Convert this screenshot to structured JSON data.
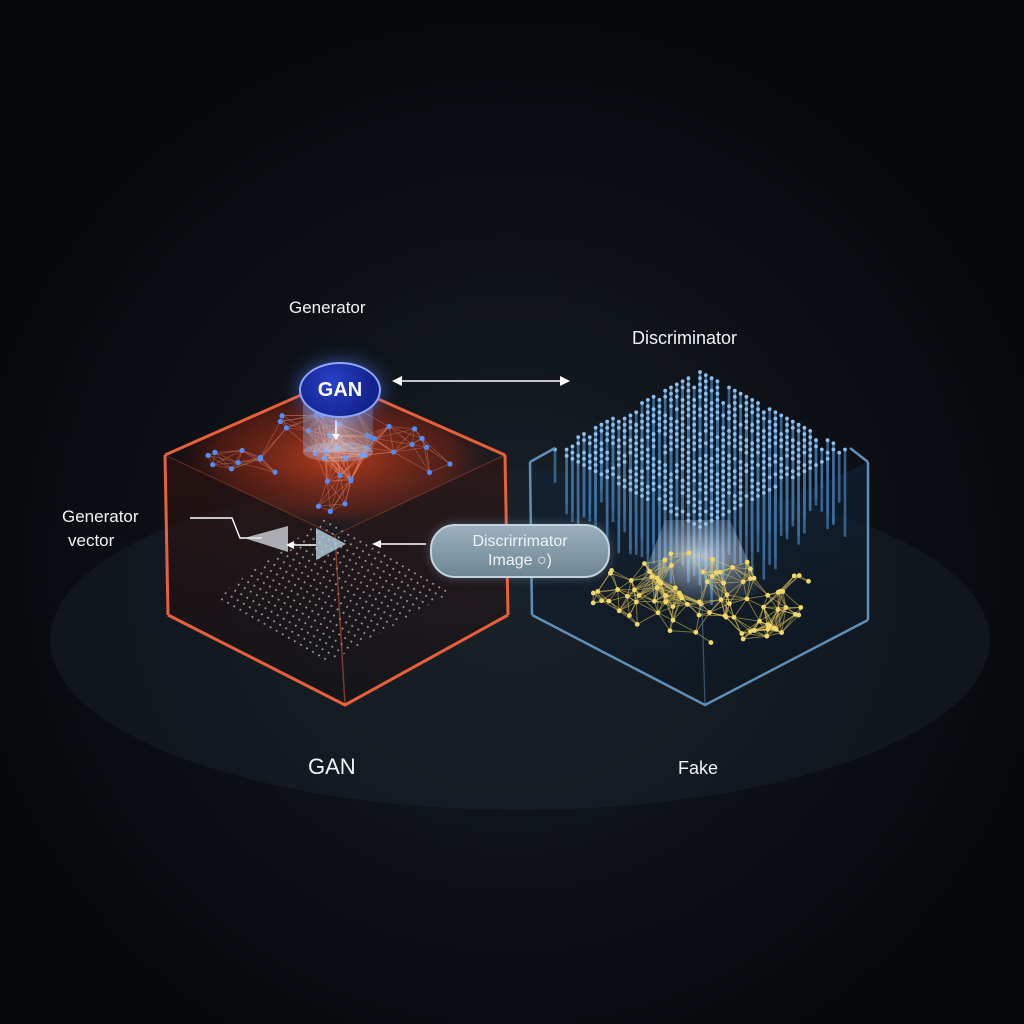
{
  "labels": {
    "generator_title": "Generator",
    "discriminator_title": "Discriminator",
    "generator_vector_line1": "Generator",
    "generator_vector_line2": "vector",
    "gan_badge": "GAN",
    "discriminator_pill_line1": "Discrirrimator",
    "discriminator_pill_line2": "Image ○)",
    "gan_bottom": "GAN",
    "fake": "Fake"
  },
  "colors": {
    "background": "#07090c",
    "generator_box_edge": "#e8603a",
    "generator_glow": "#c8391c",
    "generator_nodes": "#4f8dff",
    "discriminator_box_edge": "#5f8fb8",
    "discriminator_pillars": "#4f86c0",
    "discriminator_network": "#e6c85a",
    "badge_fill": "#1a2ea8",
    "pill_fill": "#8aa0b0"
  }
}
